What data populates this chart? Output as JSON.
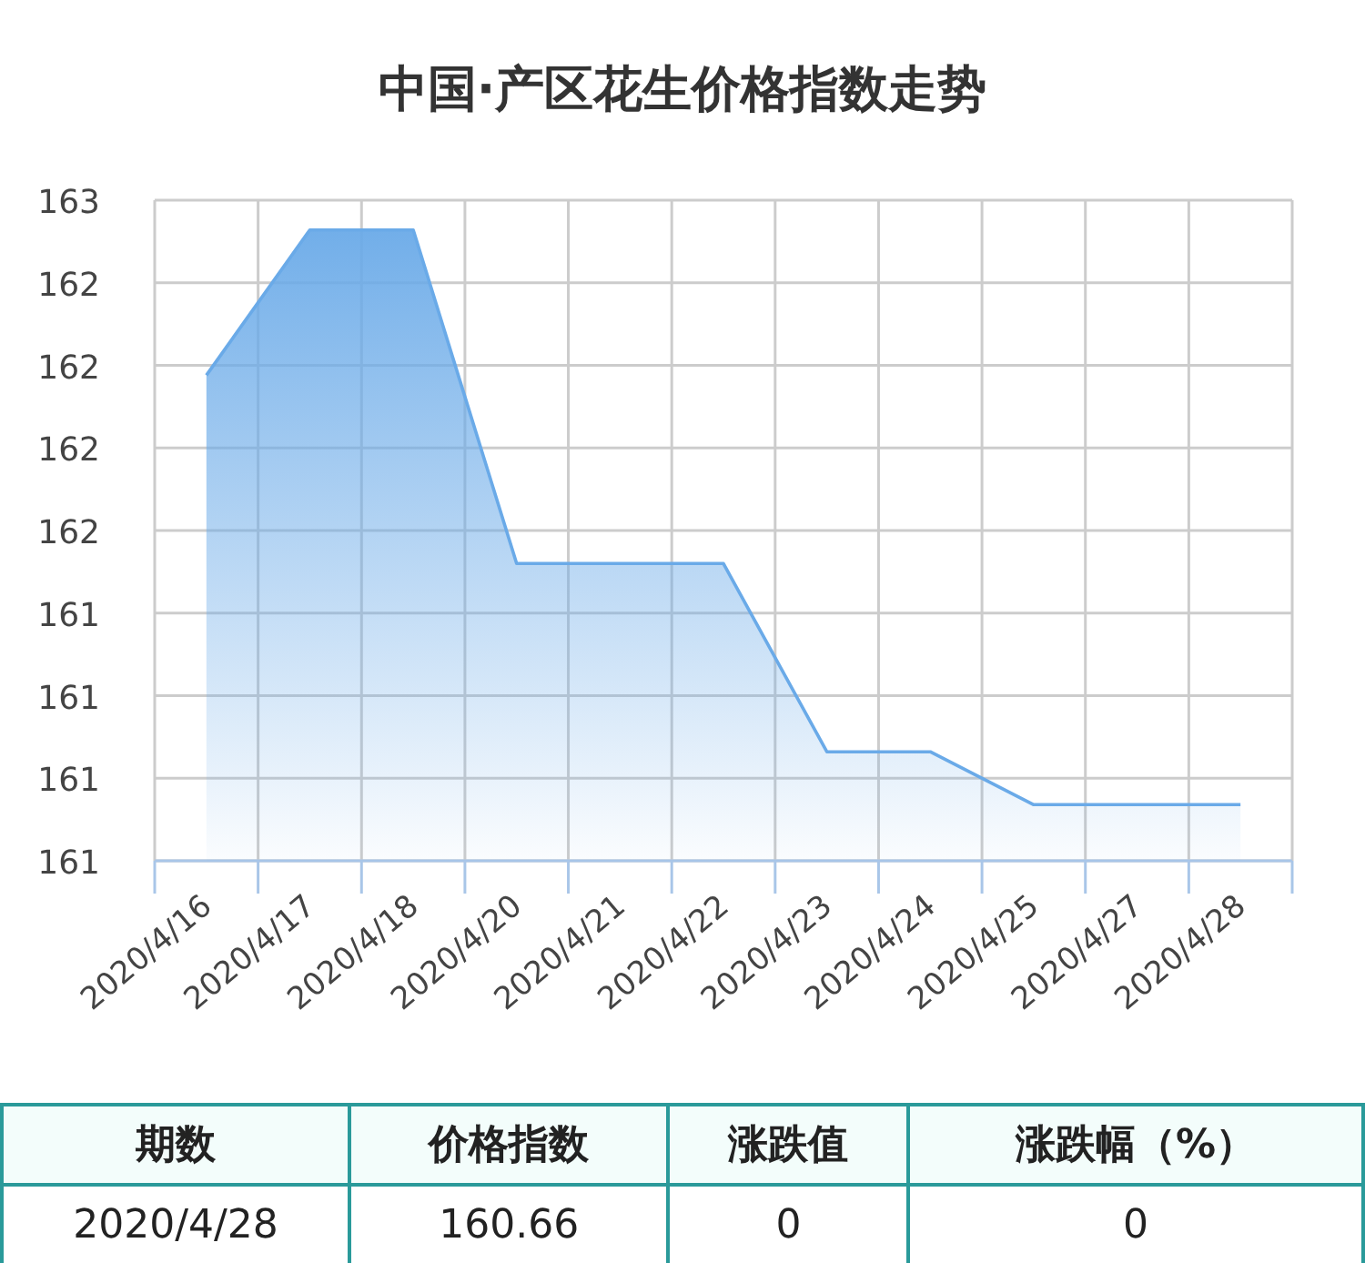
{
  "chart_data": {
    "type": "area",
    "title": "中国·产区花生价格指数走势",
    "categories": [
      "2020/4/16",
      "2020/4/17",
      "2020/4/18",
      "2020/4/20",
      "2020/4/21",
      "2020/4/22",
      "2020/4/23",
      "2020/4/24",
      "2020/4/25",
      "2020/4/27",
      "2020/4/28"
    ],
    "series": [
      {
        "color": "#6aaae8",
        "values": [
          162.07,
          162.51,
          162.51,
          161.5,
          161.5,
          161.5,
          160.93,
          160.93,
          160.77,
          160.77,
          160.77
        ]
      }
    ],
    "ylim": [
      160.6,
      162.6
    ],
    "yticks": [
      {
        "value": 160.6,
        "label": "161"
      },
      {
        "value": 160.85,
        "label": "161"
      },
      {
        "value": 161.1,
        "label": "161"
      },
      {
        "value": 161.35,
        "label": "161"
      },
      {
        "value": 161.6,
        "label": "162"
      },
      {
        "value": 161.85,
        "label": "162"
      },
      {
        "value": 162.1,
        "label": "162"
      },
      {
        "value": 162.35,
        "label": "162"
      },
      {
        "value": 162.6,
        "label": "163"
      }
    ],
    "grid": true,
    "annotations": [
      "期数",
      "价格指数",
      "涨跌值",
      "涨跌幅（%）",
      "2020/4/28",
      "160.66",
      "0",
      "0"
    ]
  }
}
